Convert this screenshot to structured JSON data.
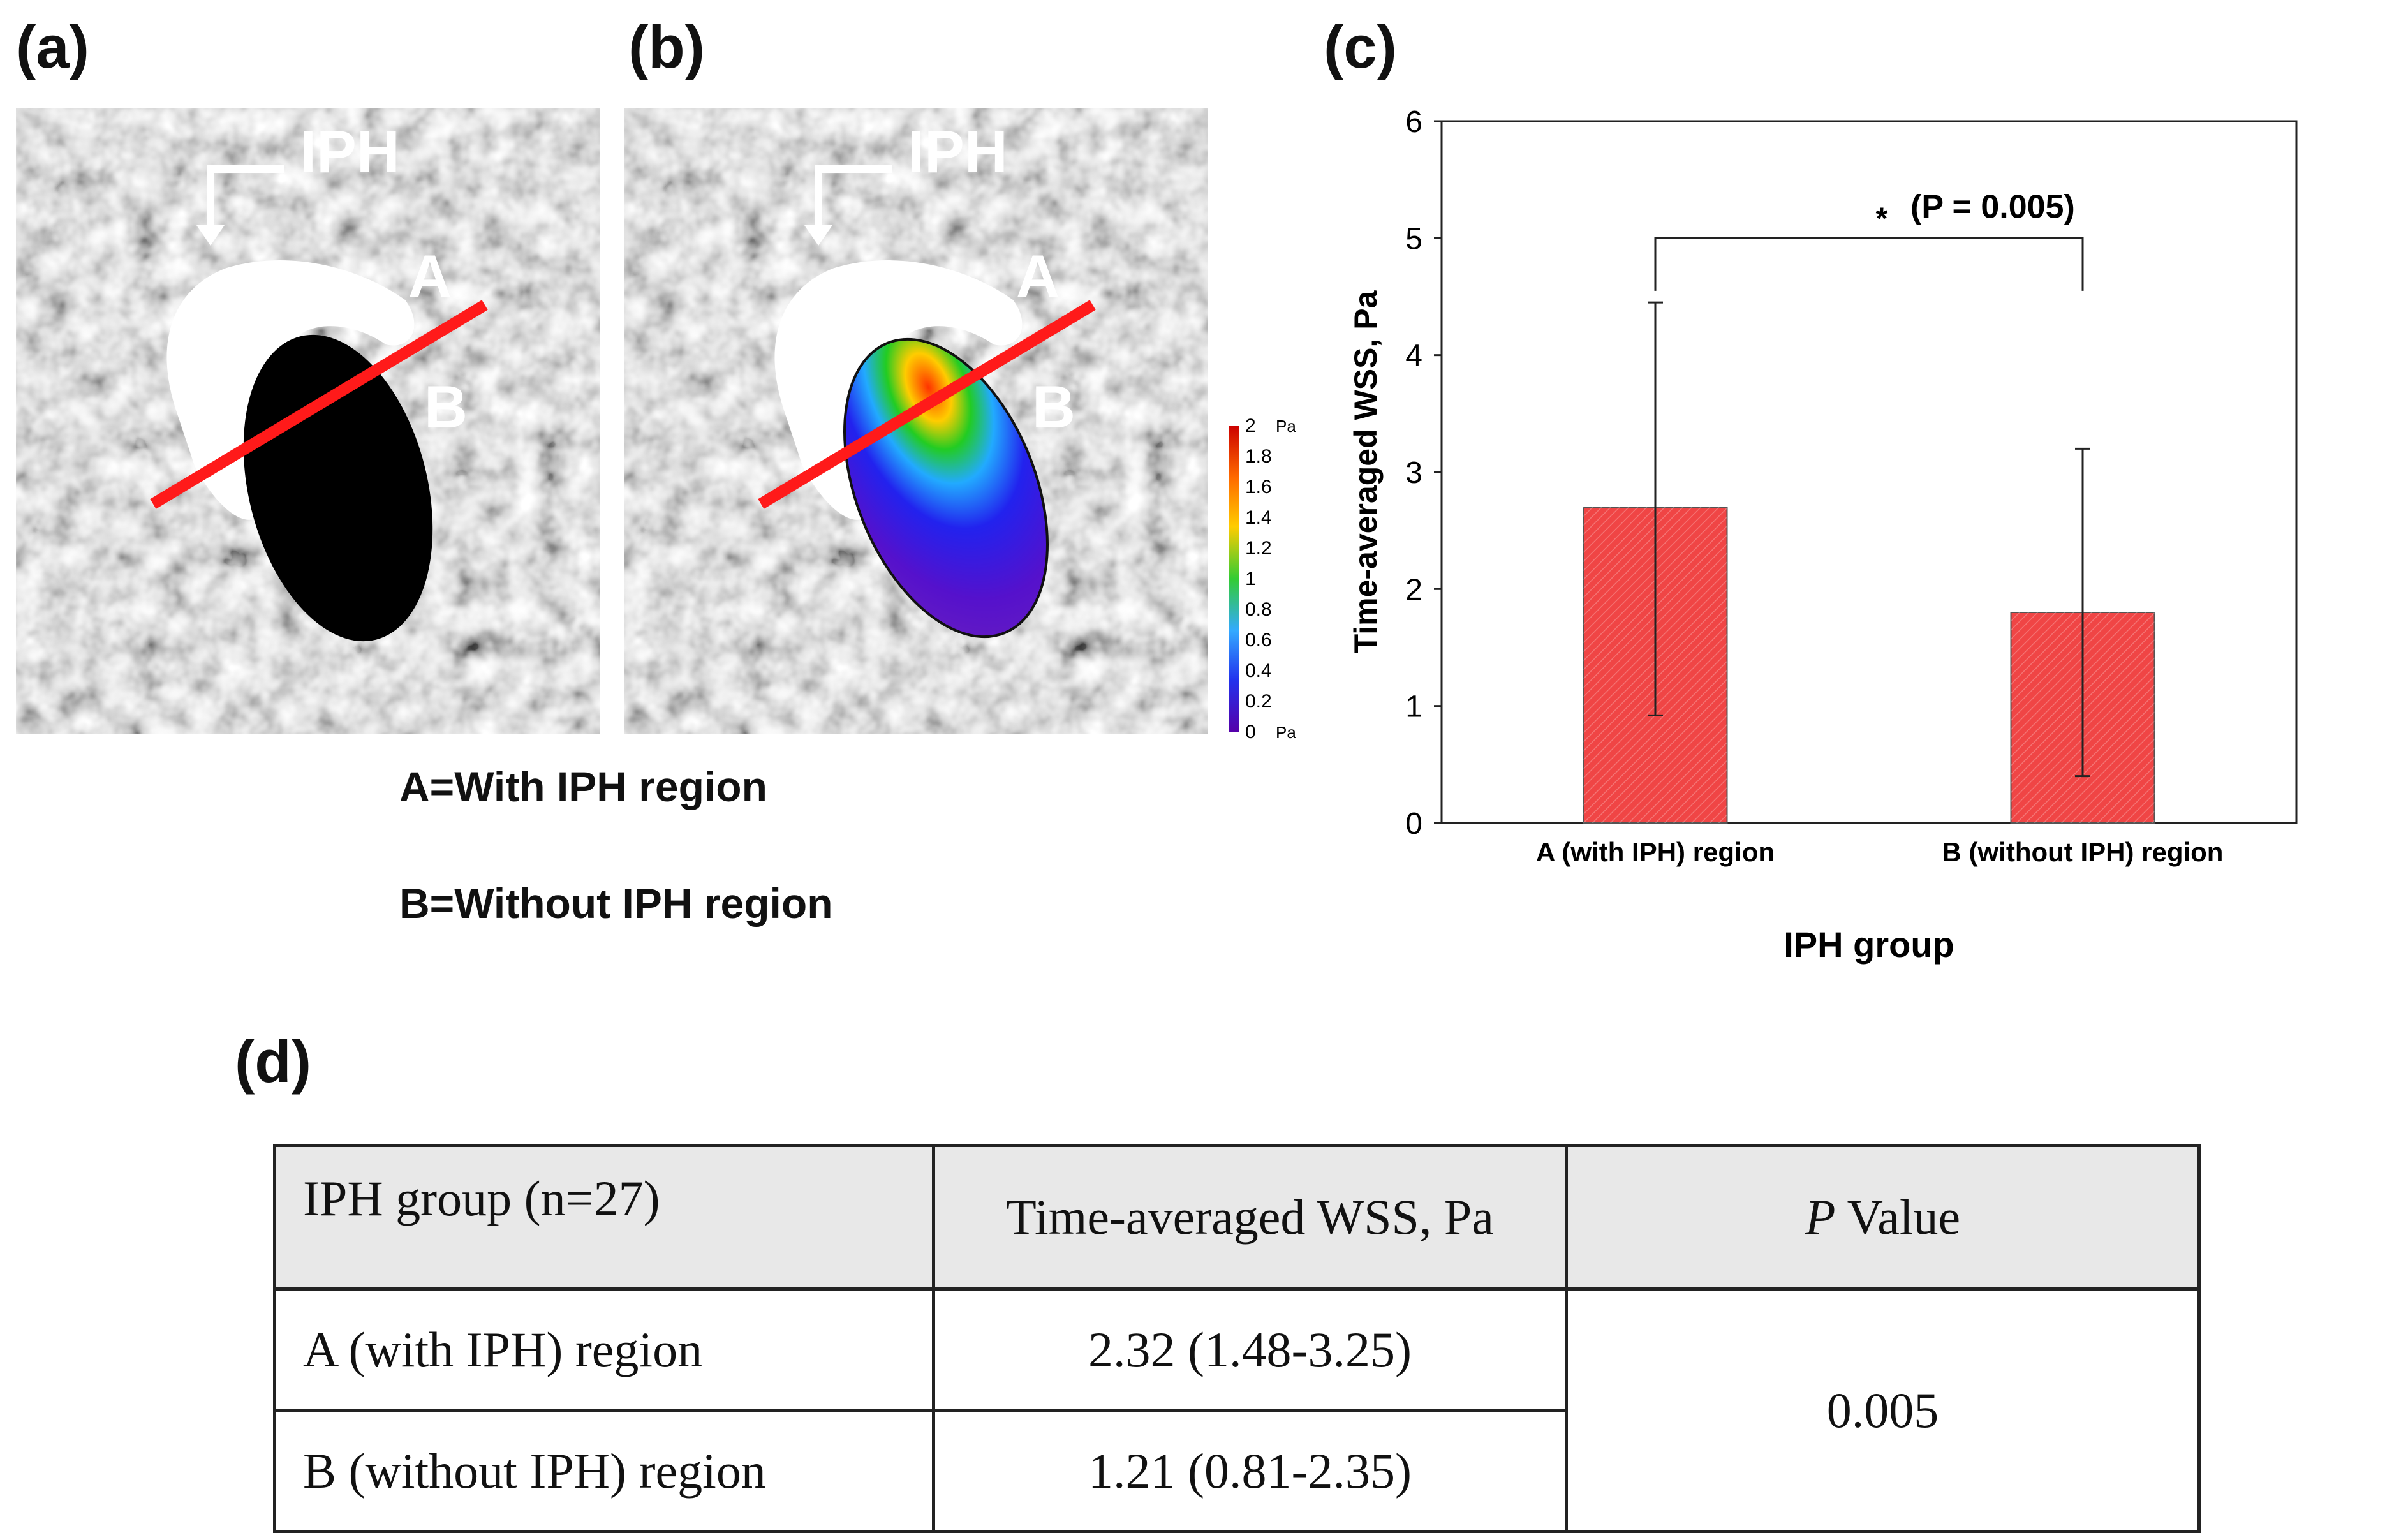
{
  "panels": {
    "a": "(a)",
    "b": "(b)",
    "c": "(c)",
    "d": "(d)"
  },
  "images": {
    "iph_label": "IPH",
    "point_a": "A",
    "point_b": "B",
    "legend_a": "A=With IPH region",
    "legend_b": "B=Without IPH region"
  },
  "colorbar": {
    "unit": "Pa",
    "ticks": [
      "2",
      "1.8",
      "1.6",
      "1.4",
      "1.2",
      "1",
      "0.8",
      "0.6",
      "0.4",
      "0.2",
      "0"
    ],
    "colors": [
      "#cc0000",
      "#ff6a00",
      "#ffcc00",
      "#33cc33",
      "#33aaff",
      "#2233ee",
      "#5500aa"
    ]
  },
  "chart_data": {
    "type": "bar",
    "categories": [
      "A (with IPH) region",
      "B (without IPH) region"
    ],
    "values": [
      2.7,
      1.8
    ],
    "error_upper": [
      4.45,
      3.2
    ],
    "error_lower": [
      0.92,
      0.4
    ],
    "ylabel": "Time-averaged WSS, Pa",
    "xlabel": "IPH group",
    "ylim": [
      0,
      6
    ],
    "yticks": [
      0,
      1,
      2,
      3,
      4,
      5,
      6
    ],
    "significance_star": "*",
    "significance_text": "(P = 0.005)",
    "bar_color": "#f04545"
  },
  "table": {
    "headers": [
      "IPH group (n=27)",
      "Time-averaged WSS, Pa",
      "Value"
    ],
    "p_italic": "P",
    "rows": [
      {
        "group": "A (with IPH) region",
        "wss": "2.32 (1.48-3.25)"
      },
      {
        "group": "B (without IPH) region",
        "wss": "1.21 (0.81-2.35)"
      }
    ],
    "p_value": "0.005"
  }
}
